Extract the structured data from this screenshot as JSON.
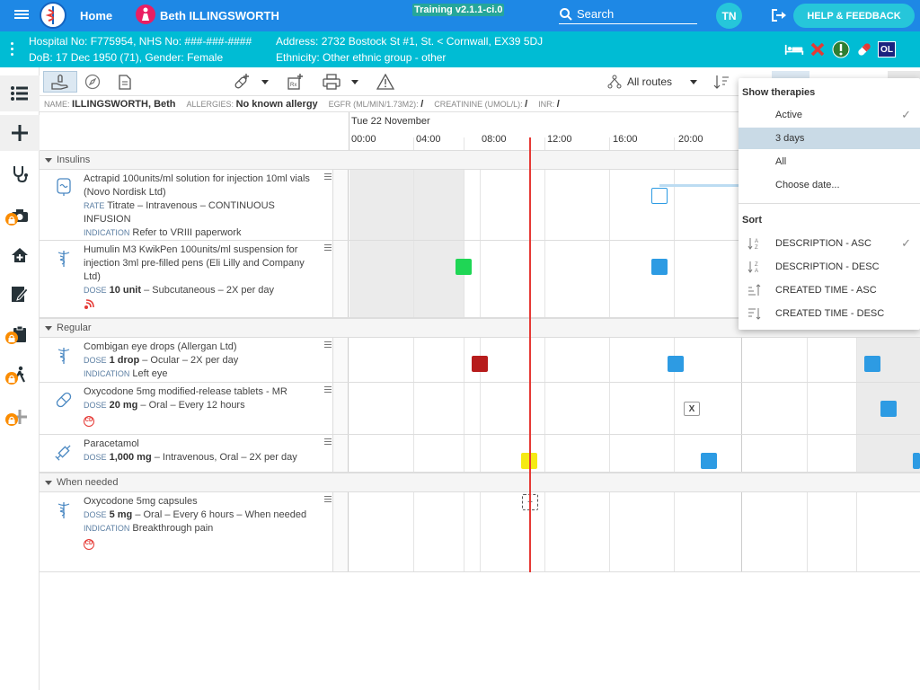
{
  "topbar": {
    "home_label": "Home",
    "patient_name": "Beth ILLINGSWORTH",
    "training_label": "Training v2.1.1-ci.0",
    "search_label": "Search",
    "user_initials": "TN",
    "help_label": "HELP & FEEDBACK"
  },
  "banner": {
    "hospital_no": "Hospital No: F775954, NHS No: ###-###-####",
    "dob": "DoB: 17 Dec 1950 (71), Gender: Female",
    "address": "Address: 2732 Bostock St #1, St. < Cornwall, EX39 5DJ",
    "ethnicity": "Ethnicity: Other ethnic group - other",
    "flag_ol": "OL"
  },
  "toolbar": {
    "routes_label": "All routes"
  },
  "infoline": {
    "name_label": "NAME:",
    "name_value": "ILLINGSWORTH, Beth",
    "allergies_label": "ALLERGIES:",
    "allergies_value": "No known allergy",
    "egfr_label": "EGFR (ML/MIN/1.73M2):",
    "egfr_value": "/",
    "creatinine_label": "CREATININE (UMOL/L):",
    "creatinine_value": "/",
    "inr_label": "INR:",
    "inr_value": "/"
  },
  "timeline": {
    "date": "Tue 22 November",
    "hours": [
      "00:00",
      "04:00",
      "08:00",
      "12:00",
      "16:00",
      "20:00"
    ]
  },
  "groups": {
    "insulins": "Insulins",
    "regular": "Regular",
    "when_needed": "When needed"
  },
  "labels": {
    "rate": "RATE",
    "indication": "INDICATION",
    "dose": "DOSE",
    "cd": "CD",
    "x": "X",
    "plus": "+"
  },
  "meds": [
    {
      "name": "Actrapid 100units/ml solution for injection 10ml vials (Novo Nordisk Ltd)",
      "detail": "Titrate – Intravenous – CONTINUOUS INFUSION",
      "indication": "Refer to VRIII paperwork"
    },
    {
      "name": "Humulin M3 KwikPen 100units/ml suspension for injection 3ml pre-filled pens (Eli Lilly and Company Ltd)",
      "dose": "10 unit",
      "detail": " – Subcutaneous – 2X per day"
    },
    {
      "name": "Combigan eye drops (Allergan Ltd)",
      "dose": "1 drop",
      "detail": " – Ocular – 2X per day",
      "indication": "Left eye"
    },
    {
      "name": "Oxycodone 5mg modified-release tablets - MR",
      "dose": "20 mg",
      "detail": " – Oral – Every 12 hours"
    },
    {
      "name": "Paracetamol",
      "dose": "1,000 mg",
      "detail": " – Intravenous, Oral – 2X per day"
    },
    {
      "name": "Oxycodone 5mg capsules",
      "dose": "5 mg",
      "detail": " – Oral – Every 6 hours – When needed",
      "indication": "Breakthrough pain"
    }
  ],
  "dropdown": {
    "show_header": "Show therapies",
    "show_items": [
      "Active",
      "3 days",
      "All",
      "Choose date..."
    ],
    "sort_header": "Sort",
    "sort_items": [
      "DESCRIPTION - ASC",
      "DESCRIPTION - DESC",
      "CREATED TIME - ASC",
      "CREATED TIME - DESC"
    ],
    "checkmark": "✓"
  },
  "colors": {
    "topbar": "#1e88e5",
    "banner": "#00bcd4",
    "dose_blue": "#2d9be3",
    "dose_green": "#1fd655",
    "dose_red": "#b71c1c",
    "dose_yellow": "#f5ea14",
    "now_line": "#e53935"
  },
  "icons": {
    "menu": "hamburger-icon",
    "search": "search-icon",
    "logout": "logout-icon",
    "bed": "bed-icon",
    "red_x": "red-x-icon",
    "alert": "exclamation-icon",
    "pill": "pill-icon"
  }
}
